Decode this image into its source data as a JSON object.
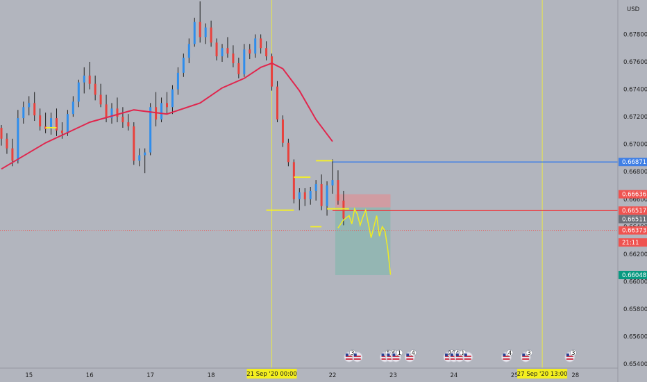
{
  "currency": "USD",
  "chart_data": {
    "type": "candlestick",
    "y_axis": {
      "range": [
        0.6535,
        0.6804
      ],
      "ticks": [
        "0.67800",
        "0.67600",
        "0.67400",
        "0.67200",
        "0.67000",
        "0.66800",
        "0.66600",
        "0.66400",
        "0.66200",
        "0.66000",
        "0.65800",
        "0.65600",
        "0.65400"
      ]
    },
    "x_axis": {
      "ticks": [
        {
          "label": "15",
          "bar": 5
        },
        {
          "label": "16",
          "bar": 16
        },
        {
          "label": "17",
          "bar": 27
        },
        {
          "label": "18",
          "bar": 38
        },
        {
          "label": "22",
          "bar": 60
        },
        {
          "label": "23",
          "bar": 71
        },
        {
          "label": "24",
          "bar": 82
        },
        {
          "label": "25",
          "bar": 93
        },
        {
          "label": "28",
          "bar": 104
        }
      ],
      "highlight_labels": [
        {
          "label": "21 Sep '20   00:00",
          "bar": 49
        },
        {
          "label": "27 Sep '20   13:00",
          "bar": 98
        }
      ]
    },
    "vertical_lines_at_bar": [
      49,
      98
    ],
    "up_color": "#2f8dec",
    "down_color": "#e8413c",
    "candles": [
      [
        0.6712,
        0.6714,
        0.6699,
        0.6704
      ],
      [
        0.6704,
        0.6708,
        0.6693,
        0.6697
      ],
      [
        0.6697,
        0.6704,
        0.6684,
        0.6688
      ],
      [
        0.6688,
        0.6725,
        0.6686,
        0.6719
      ],
      [
        0.6719,
        0.6731,
        0.6715,
        0.6727
      ],
      [
        0.6727,
        0.6735,
        0.6721,
        0.673
      ],
      [
        0.673,
        0.6738,
        0.6717,
        0.6721
      ],
      [
        0.6721,
        0.6726,
        0.671,
        0.6713
      ],
      [
        0.6713,
        0.6723,
        0.6708,
        0.6711
      ],
      [
        0.6711,
        0.6723,
        0.6707,
        0.6719
      ],
      [
        0.6719,
        0.6726,
        0.6706,
        0.671
      ],
      [
        0.671,
        0.6716,
        0.6704,
        0.6708
      ],
      [
        0.6708,
        0.6725,
        0.6706,
        0.6722
      ],
      [
        0.6722,
        0.6735,
        0.672,
        0.6731
      ],
      [
        0.6731,
        0.6747,
        0.6727,
        0.6745
      ],
      [
        0.6745,
        0.6756,
        0.6737,
        0.675
      ],
      [
        0.675,
        0.676,
        0.674,
        0.6744
      ],
      [
        0.6744,
        0.675,
        0.6732,
        0.6736
      ],
      [
        0.6736,
        0.6744,
        0.6727,
        0.6729
      ],
      [
        0.6729,
        0.6736,
        0.6716,
        0.6719
      ],
      [
        0.6719,
        0.673,
        0.6715,
        0.6726
      ],
      [
        0.6726,
        0.6734,
        0.6716,
        0.672
      ],
      [
        0.672,
        0.6727,
        0.6712,
        0.6716
      ],
      [
        0.6716,
        0.6722,
        0.671,
        0.6713
      ],
      [
        0.6713,
        0.6716,
        0.6685,
        0.6688
      ],
      [
        0.6688,
        0.6697,
        0.6684,
        0.6692
      ],
      [
        0.6692,
        0.6697,
        0.6679,
        0.6694
      ],
      [
        0.6694,
        0.673,
        0.6692,
        0.6727
      ],
      [
        0.6727,
        0.6738,
        0.6713,
        0.6718
      ],
      [
        0.6718,
        0.6734,
        0.6716,
        0.673
      ],
      [
        0.673,
        0.6738,
        0.6722,
        0.6727
      ],
      [
        0.6727,
        0.6743,
        0.6722,
        0.674
      ],
      [
        0.674,
        0.6756,
        0.6736,
        0.6752
      ],
      [
        0.6752,
        0.6766,
        0.6749,
        0.6763
      ],
      [
        0.6763,
        0.6777,
        0.6759,
        0.6773
      ],
      [
        0.6773,
        0.6792,
        0.6771,
        0.6789
      ],
      [
        0.6789,
        0.6804,
        0.6774,
        0.6778
      ],
      [
        0.6778,
        0.6788,
        0.6773,
        0.6785
      ],
      [
        0.6785,
        0.679,
        0.6771,
        0.6774
      ],
      [
        0.6774,
        0.6777,
        0.6761,
        0.6764
      ],
      [
        0.6764,
        0.6773,
        0.676,
        0.677
      ],
      [
        0.677,
        0.6778,
        0.6763,
        0.6766
      ],
      [
        0.6766,
        0.6772,
        0.6756,
        0.6759
      ],
      [
        0.6759,
        0.6763,
        0.6748,
        0.6751
      ],
      [
        0.6751,
        0.6773,
        0.6749,
        0.6769
      ],
      [
        0.6769,
        0.6773,
        0.6762,
        0.6766
      ],
      [
        0.6766,
        0.678,
        0.6763,
        0.6777
      ],
      [
        0.6777,
        0.678,
        0.6766,
        0.677
      ],
      [
        0.677,
        0.6775,
        0.6761,
        0.6764
      ],
      [
        0.6764,
        0.6766,
        0.6739,
        0.6742
      ],
      [
        0.6742,
        0.6746,
        0.6716,
        0.6718
      ],
      [
        0.6718,
        0.6721,
        0.6698,
        0.6701
      ],
      [
        0.6701,
        0.6704,
        0.6684,
        0.6687
      ],
      [
        0.6687,
        0.6689,
        0.6657,
        0.666
      ],
      [
        0.666,
        0.6668,
        0.6652,
        0.6665
      ],
      [
        0.6665,
        0.6668,
        0.6655,
        0.666
      ],
      [
        0.666,
        0.6669,
        0.6656,
        0.6666
      ],
      [
        0.6666,
        0.6674,
        0.6659,
        0.6671
      ],
      [
        0.6671,
        0.6678,
        0.6652,
        0.6655
      ],
      [
        0.6655,
        0.6673,
        0.6648,
        0.667
      ],
      [
        0.667,
        0.6689,
        0.6664,
        0.6674
      ],
      [
        0.6674,
        0.6681,
        0.6656,
        0.6659
      ],
      [
        0.6659,
        0.6666,
        0.6641,
        0.6646
      ]
    ],
    "moving_average": {
      "color": "#e0264d",
      "points": [
        [
          0,
          0.6682
        ],
        [
          8,
          0.6701
        ],
        [
          16,
          0.6716
        ],
        [
          24,
          0.6725
        ],
        [
          30,
          0.6722
        ],
        [
          36,
          0.673
        ],
        [
          40,
          0.6741
        ],
        [
          44,
          0.6748
        ],
        [
          47,
          0.6756
        ],
        [
          49,
          0.6759
        ],
        [
          51,
          0.6755
        ],
        [
          54,
          0.6739
        ],
        [
          57,
          0.6718
        ],
        [
          60,
          0.6702
        ]
      ]
    },
    "horizontal_lines": [
      {
        "price": 0.66871,
        "from_bar": 60,
        "color": "#3f7fe5"
      },
      {
        "price": 0.66517,
        "from_bar": 60,
        "color": "#ec3b40"
      }
    ],
    "current_price_line": {
      "price": 0.66373,
      "color": "#ef5350"
    },
    "support_marks": [
      {
        "bar_from": 8,
        "bar_to": 10,
        "price": 0.6712
      },
      {
        "bar_from": 48,
        "bar_to": 53,
        "price": 0.6652
      },
      {
        "bar_from": 53,
        "bar_to": 56,
        "price": 0.6676
      },
      {
        "bar_from": 56,
        "bar_to": 58,
        "price": 0.664
      },
      {
        "bar_from": 57,
        "bar_to": 60,
        "price": 0.6688
      },
      {
        "bar_from": 59,
        "bar_to": 63,
        "price": 0.6653
      }
    ],
    "position_box": {
      "bar_from": 60.5,
      "bar_to": 70.5,
      "stop_price": 0.66636,
      "entry_price": 0.6654,
      "target_price": 0.66048
    },
    "projection_path": [
      [
        61,
        0.6639
      ],
      [
        62,
        0.6645
      ],
      [
        63,
        0.6648
      ],
      [
        63.5,
        0.6642
      ],
      [
        64,
        0.6653
      ],
      [
        64.5,
        0.6649
      ],
      [
        65,
        0.6641
      ],
      [
        65.5,
        0.6647
      ],
      [
        66,
        0.6652
      ],
      [
        67,
        0.6632
      ],
      [
        68,
        0.6648
      ],
      [
        68.5,
        0.6633
      ],
      [
        69,
        0.664
      ],
      [
        69.5,
        0.6637
      ],
      [
        70,
        0.6624
      ],
      [
        70.5,
        0.6605
      ]
    ],
    "price_labels": [
      {
        "text": "0.66871",
        "bg": "#3f7fe5",
        "fg": "#ffffff",
        "price": 0.66871
      },
      {
        "text": "0.66636",
        "bg": "#ef5350",
        "fg": "#ffffff",
        "price": 0.66636
      },
      {
        "text": "0.66517",
        "bg": "#ef5350",
        "fg": "#ffffff",
        "price": 0.66517
      },
      {
        "text": "0.66511",
        "bg": "#6c7079",
        "fg": "#ffffff",
        "price": 0.66455
      },
      {
        "text": "0.66373",
        "bg": "#ef5350",
        "fg": "#ffffff",
        "price": 0.66373
      },
      {
        "text": "21:11",
        "bg": "#ef5350",
        "fg": "#ffffff",
        "price": 0.66285
      },
      {
        "text": "0.66048",
        "bg": "#089981",
        "fg": "#ffffff",
        "price": 0.66048
      }
    ],
    "event_badges": [
      {
        "bar": 63,
        "text": "3"
      },
      {
        "bar": 64.5,
        "text": ""
      },
      {
        "bar": 69.5,
        "text": "5"
      },
      {
        "bar": 70.5,
        "text": "6"
      },
      {
        "bar": 71.5,
        "text": "1"
      },
      {
        "bar": 74,
        "text": "4"
      },
      {
        "bar": 81,
        "text": "29"
      },
      {
        "bar": 82,
        "text": "4"
      },
      {
        "bar": 83,
        "text": "1"
      },
      {
        "bar": 84.5,
        "text": ""
      },
      {
        "bar": 91.5,
        "text": "4"
      },
      {
        "bar": 95,
        "text": "3"
      },
      {
        "bar": 103,
        "text": "3"
      }
    ]
  }
}
